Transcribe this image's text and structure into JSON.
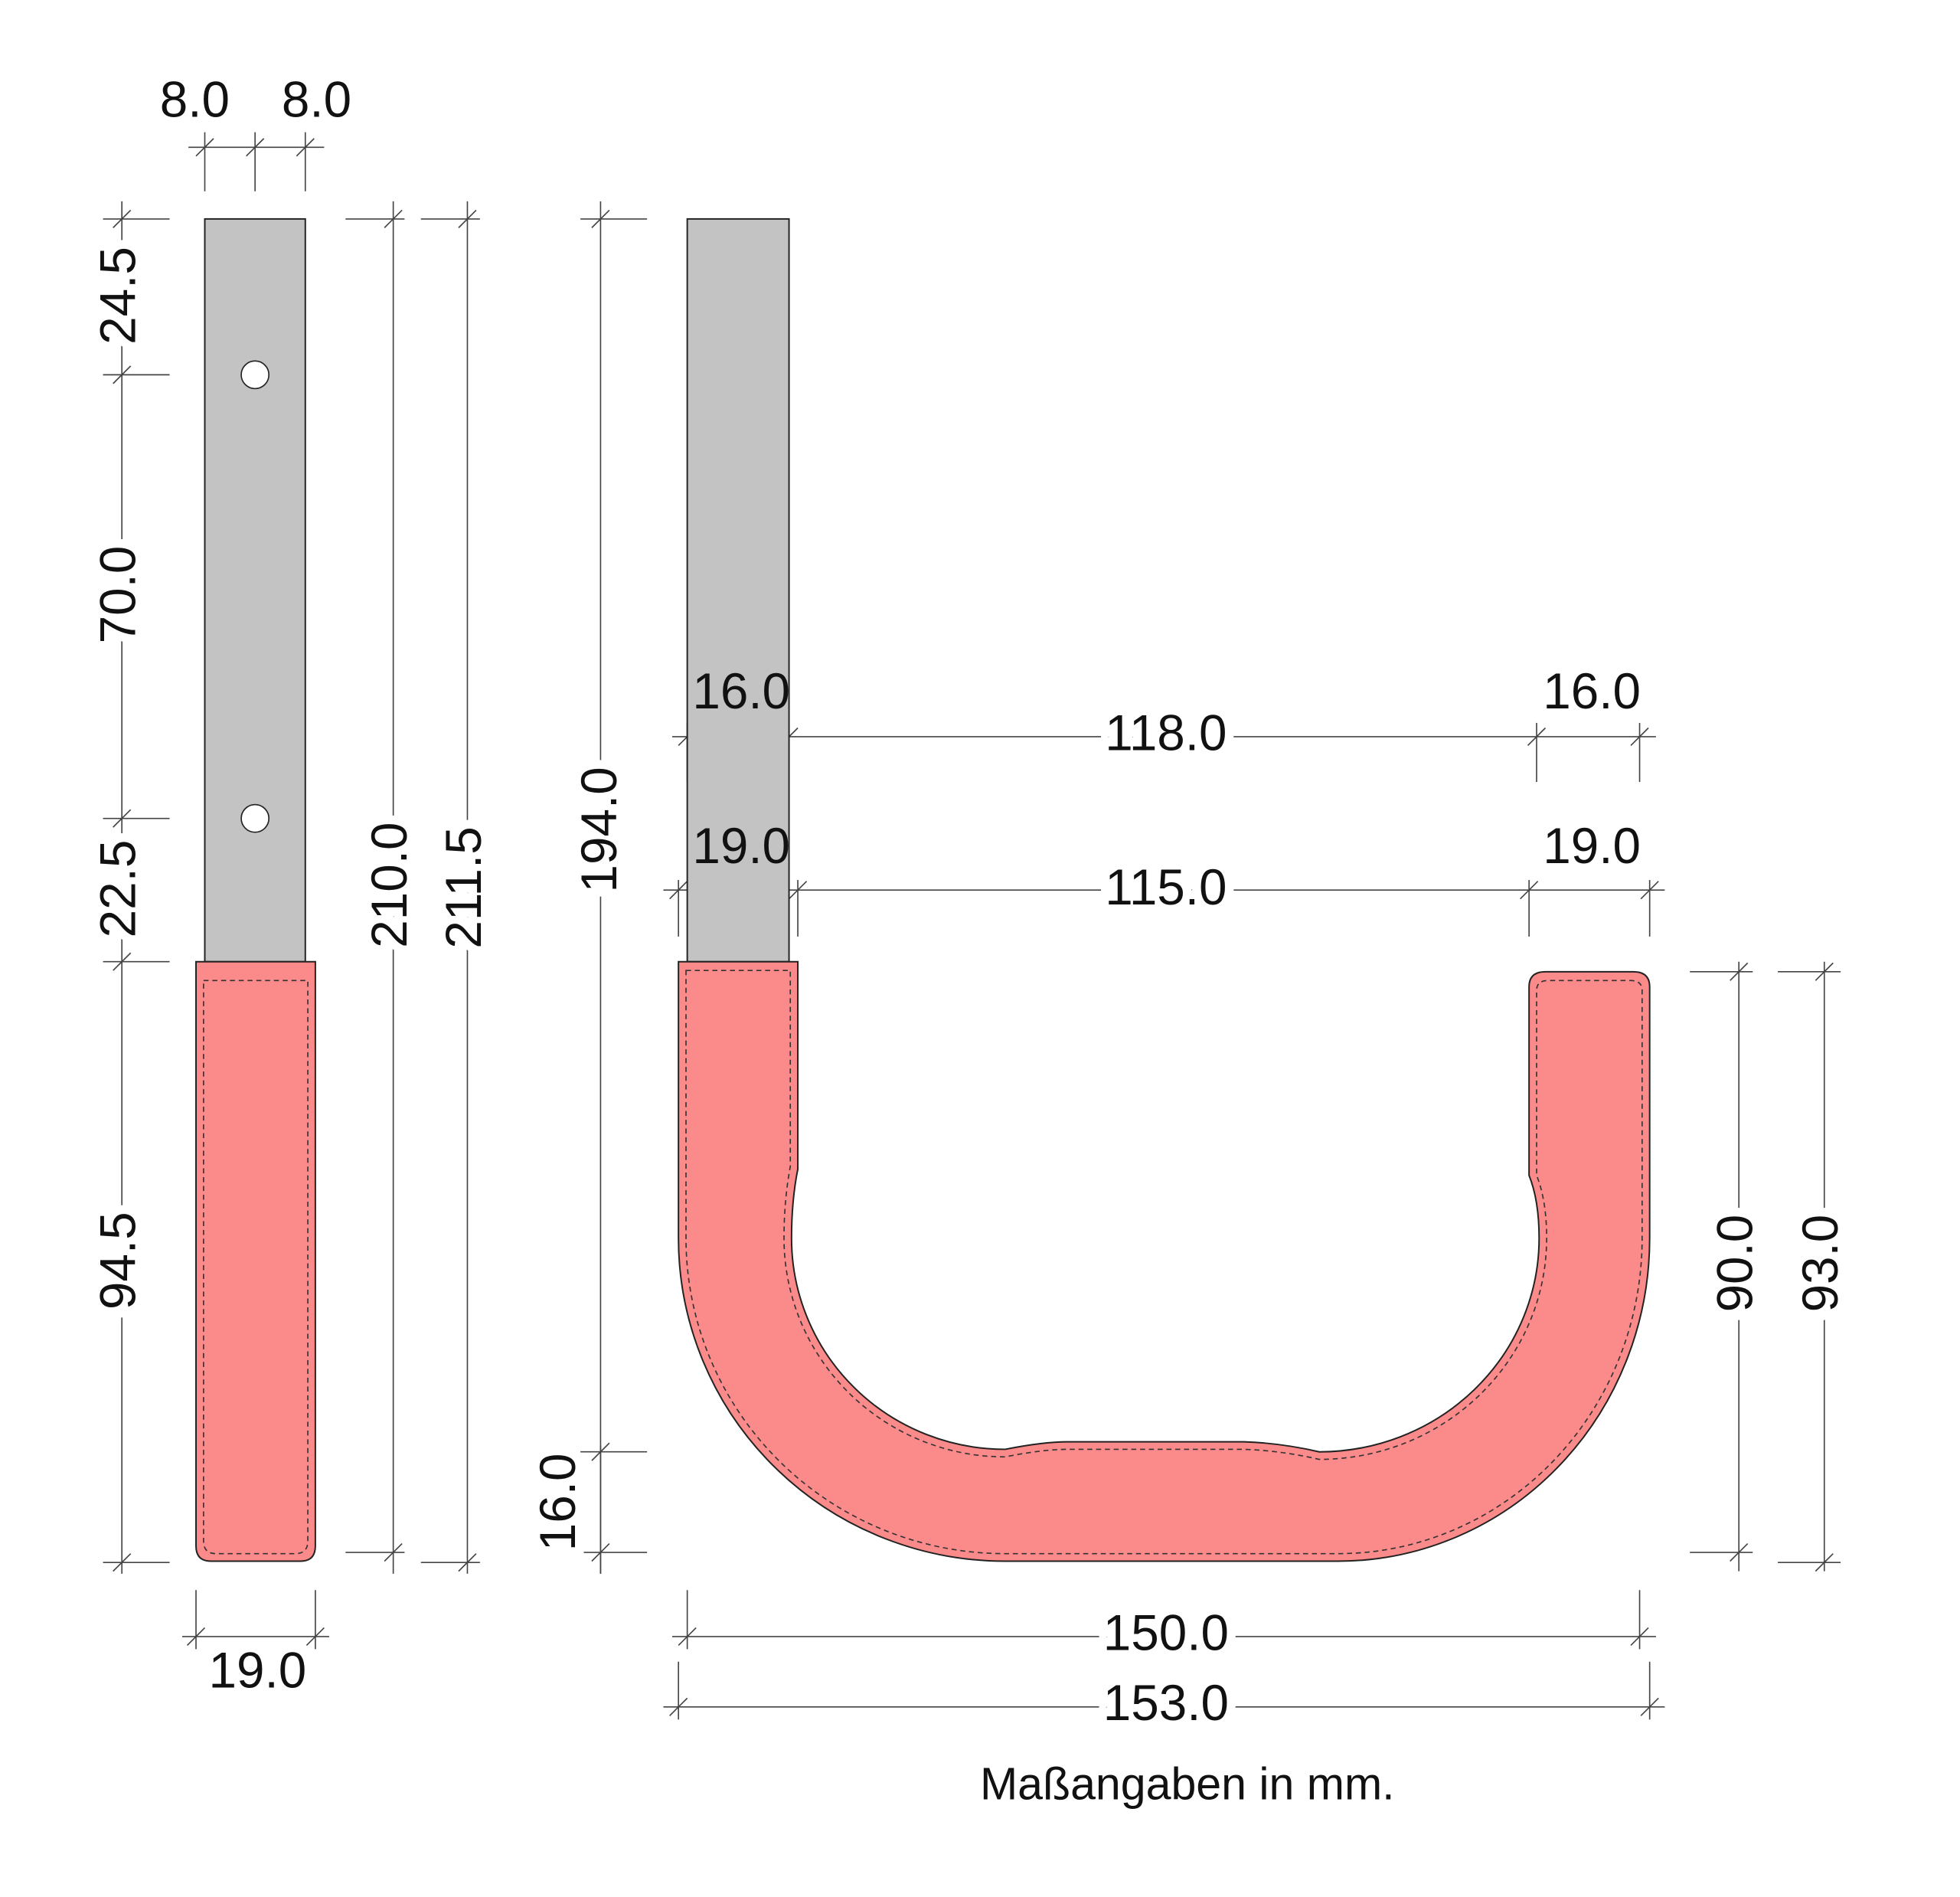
{
  "side_view": {
    "top_width_left": "8.0",
    "top_width_right": "8.0",
    "height_top": "24.5",
    "height_holes": "70.0",
    "height_lower": "22.5",
    "height_grip": "94.5",
    "total_inner": "210.0",
    "total_outer": "211.5",
    "bottom_width": "19.0"
  },
  "front_view": {
    "height_total": "194.0",
    "height_bottom": "16.0",
    "inner_left": "16.0",
    "inner_span": "118.0",
    "inner_right": "16.0",
    "outer_left": "19.0",
    "outer_span": "115.0",
    "outer_right": "19.0",
    "arm_inner": "90.0",
    "arm_outer": "93.0",
    "width_inner": "150.0",
    "width_outer": "153.0"
  },
  "note": "Maßangaben in mm."
}
